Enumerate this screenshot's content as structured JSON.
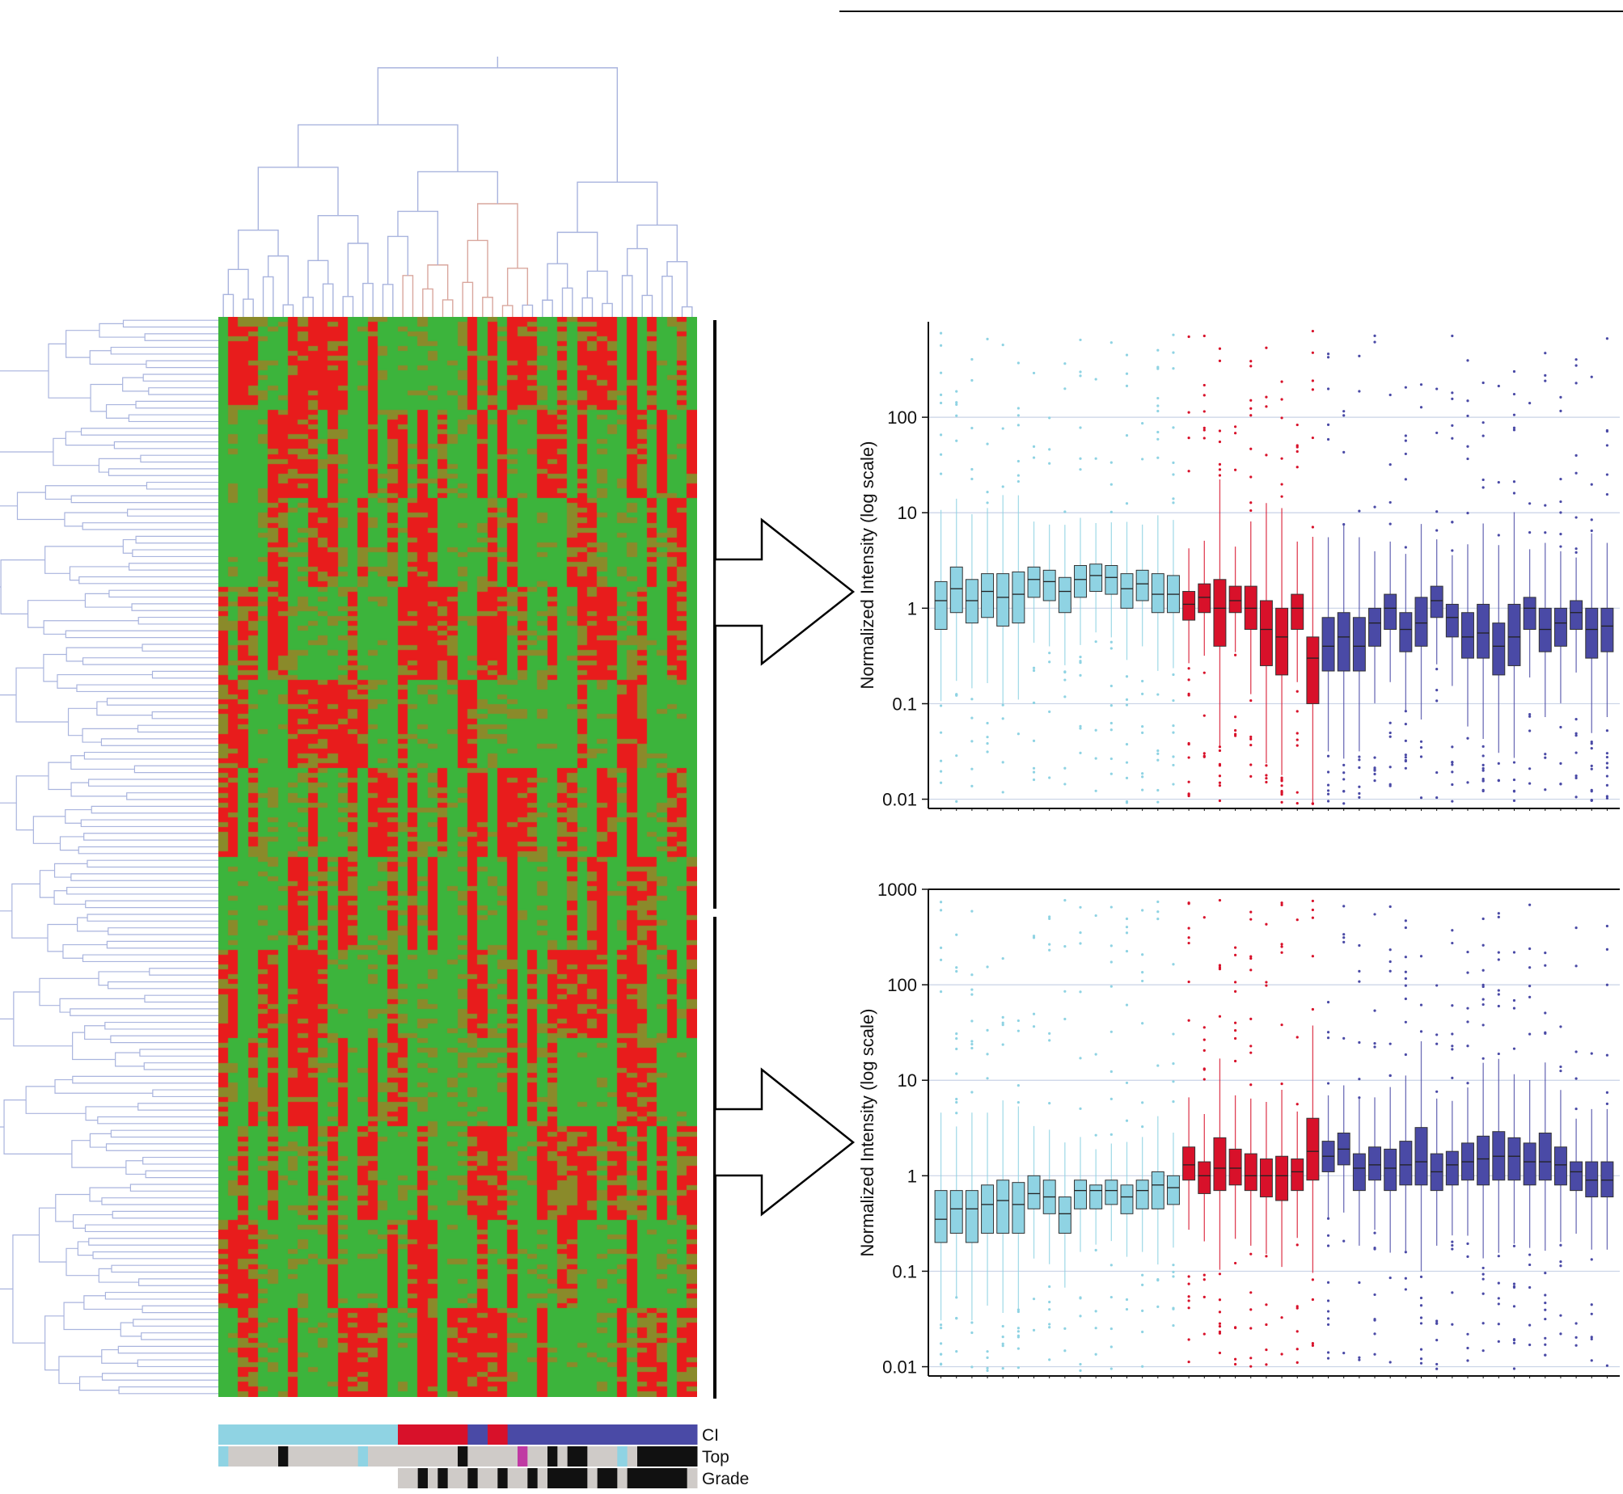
{
  "colors": {
    "cluster_light": "#8fd3e3",
    "cluster_red": "#d8112a",
    "cluster_dark": "#4a4aa6",
    "heat_high": "#e81c1c",
    "heat_low": "#3cb43c",
    "heat_mid": "#8a8a2a",
    "dendrogram": "#a9b4de",
    "track_grey": "#cfcbc8",
    "track_black": "#111111",
    "track_magenta": "#c03aa3"
  },
  "heatmap": {
    "columns": 48,
    "annotation_tracks": [
      {
        "name": "CI",
        "segments": [
          {
            "from": 0,
            "to": 18,
            "color": "cluster_light"
          },
          {
            "from": 18,
            "to": 25,
            "color": "cluster_red"
          },
          {
            "from": 25,
            "to": 27,
            "color": "cluster_dark"
          },
          {
            "from": 27,
            "to": 29,
            "color": "cluster_red"
          },
          {
            "from": 29,
            "to": 48,
            "color": "cluster_dark"
          }
        ]
      },
      {
        "name": "Top",
        "segments": [
          {
            "from": 0,
            "to": 1,
            "color": "cluster_light"
          },
          {
            "from": 1,
            "to": 6,
            "color": "track_grey"
          },
          {
            "from": 6,
            "to": 7,
            "color": "track_black"
          },
          {
            "from": 7,
            "to": 14,
            "color": "track_grey"
          },
          {
            "from": 14,
            "to": 15,
            "color": "cluster_light"
          },
          {
            "from": 15,
            "to": 24,
            "color": "track_grey"
          },
          {
            "from": 24,
            "to": 25,
            "color": "track_black"
          },
          {
            "from": 25,
            "to": 30,
            "color": "track_grey"
          },
          {
            "from": 30,
            "to": 31,
            "color": "track_magenta"
          },
          {
            "from": 31,
            "to": 33,
            "color": "track_grey"
          },
          {
            "from": 33,
            "to": 34,
            "color": "track_black"
          },
          {
            "from": 34,
            "to": 35,
            "color": "track_grey"
          },
          {
            "from": 35,
            "to": 37,
            "color": "track_black"
          },
          {
            "from": 37,
            "to": 40,
            "color": "track_grey"
          },
          {
            "from": 40,
            "to": 41,
            "color": "cluster_light"
          },
          {
            "from": 41,
            "to": 42,
            "color": "track_grey"
          },
          {
            "from": 42,
            "to": 48,
            "color": "track_black"
          }
        ]
      },
      {
        "name": "Grade",
        "segments": [
          {
            "from": 18,
            "to": 20,
            "color": "track_grey"
          },
          {
            "from": 20,
            "to": 21,
            "color": "track_black"
          },
          {
            "from": 21,
            "to": 22,
            "color": "track_grey"
          },
          {
            "from": 22,
            "to": 23,
            "color": "track_black"
          },
          {
            "from": 23,
            "to": 25,
            "color": "track_grey"
          },
          {
            "from": 25,
            "to": 26,
            "color": "track_black"
          },
          {
            "from": 26,
            "to": 28,
            "color": "track_grey"
          },
          {
            "from": 28,
            "to": 29,
            "color": "track_black"
          },
          {
            "from": 29,
            "to": 31,
            "color": "track_grey"
          },
          {
            "from": 31,
            "to": 32,
            "color": "track_black"
          },
          {
            "from": 32,
            "to": 33,
            "color": "track_grey"
          },
          {
            "from": 33,
            "to": 37,
            "color": "track_black"
          },
          {
            "from": 37,
            "to": 38,
            "color": "track_grey"
          },
          {
            "from": 38,
            "to": 40,
            "color": "track_black"
          },
          {
            "from": 40,
            "to": 41,
            "color": "track_grey"
          },
          {
            "from": 41,
            "to": 47,
            "color": "track_black"
          },
          {
            "from": 47,
            "to": 48,
            "color": "track_grey"
          }
        ]
      }
    ]
  },
  "chart_data": [
    {
      "type": "box",
      "ylabel": "Normalized Intensity (log scale)",
      "yscale": "log",
      "ylim": [
        0.008,
        1000
      ],
      "yticks": [
        "100",
        "10",
        "1",
        "0.1",
        "0.01"
      ],
      "grid": "horizontal",
      "boxes": [
        {
          "group": "cluster_light",
          "q1": 0.6,
          "median": 1.2,
          "q3": 1.9
        },
        {
          "group": "cluster_light",
          "q1": 0.9,
          "median": 1.6,
          "q3": 2.7
        },
        {
          "group": "cluster_light",
          "q1": 0.7,
          "median": 1.2,
          "q3": 2.0
        },
        {
          "group": "cluster_light",
          "q1": 0.8,
          "median": 1.5,
          "q3": 2.3
        },
        {
          "group": "cluster_light",
          "q1": 0.65,
          "median": 1.3,
          "q3": 2.3
        },
        {
          "group": "cluster_light",
          "q1": 0.7,
          "median": 1.4,
          "q3": 2.4
        },
        {
          "group": "cluster_light",
          "q1": 1.3,
          "median": 2.0,
          "q3": 2.7
        },
        {
          "group": "cluster_light",
          "q1": 1.2,
          "median": 1.9,
          "q3": 2.5
        },
        {
          "group": "cluster_light",
          "q1": 0.9,
          "median": 1.5,
          "q3": 2.1
        },
        {
          "group": "cluster_light",
          "q1": 1.3,
          "median": 2.0,
          "q3": 2.8
        },
        {
          "group": "cluster_light",
          "q1": 1.5,
          "median": 2.2,
          "q3": 2.9
        },
        {
          "group": "cluster_light",
          "q1": 1.4,
          "median": 2.1,
          "q3": 2.8
        },
        {
          "group": "cluster_light",
          "q1": 1.0,
          "median": 1.6,
          "q3": 2.3
        },
        {
          "group": "cluster_light",
          "q1": 1.2,
          "median": 1.8,
          "q3": 2.5
        },
        {
          "group": "cluster_light",
          "q1": 0.9,
          "median": 1.4,
          "q3": 2.3
        },
        {
          "group": "cluster_light",
          "q1": 0.9,
          "median": 1.4,
          "q3": 2.2
        },
        {
          "group": "cluster_red",
          "q1": 0.75,
          "median": 1.1,
          "q3": 1.5
        },
        {
          "group": "cluster_red",
          "q1": 0.9,
          "median": 1.3,
          "q3": 1.8
        },
        {
          "group": "cluster_red",
          "q1": 0.4,
          "median": 1.0,
          "q3": 2.0
        },
        {
          "group": "cluster_red",
          "q1": 0.9,
          "median": 1.2,
          "q3": 1.7
        },
        {
          "group": "cluster_red",
          "q1": 0.6,
          "median": 1.0,
          "q3": 1.7
        },
        {
          "group": "cluster_red",
          "q1": 0.25,
          "median": 0.6,
          "q3": 1.2
        },
        {
          "group": "cluster_red",
          "q1": 0.2,
          "median": 0.5,
          "q3": 1.0
        },
        {
          "group": "cluster_red",
          "q1": 0.6,
          "median": 1.0,
          "q3": 1.4
        },
        {
          "group": "cluster_red",
          "q1": 0.1,
          "median": 0.3,
          "q3": 0.5
        },
        {
          "group": "cluster_dark",
          "q1": 0.22,
          "median": 0.4,
          "q3": 0.8
        },
        {
          "group": "cluster_dark",
          "q1": 0.22,
          "median": 0.5,
          "q3": 0.9
        },
        {
          "group": "cluster_dark",
          "q1": 0.22,
          "median": 0.4,
          "q3": 0.8
        },
        {
          "group": "cluster_dark",
          "q1": 0.4,
          "median": 0.7,
          "q3": 1.0
        },
        {
          "group": "cluster_dark",
          "q1": 0.6,
          "median": 1.0,
          "q3": 1.4
        },
        {
          "group": "cluster_dark",
          "q1": 0.35,
          "median": 0.6,
          "q3": 0.9
        },
        {
          "group": "cluster_dark",
          "q1": 0.4,
          "median": 0.7,
          "q3": 1.3
        },
        {
          "group": "cluster_dark",
          "q1": 0.8,
          "median": 1.2,
          "q3": 1.7
        },
        {
          "group": "cluster_dark",
          "q1": 0.5,
          "median": 0.8,
          "q3": 1.1
        },
        {
          "group": "cluster_dark",
          "q1": 0.3,
          "median": 0.5,
          "q3": 0.9
        },
        {
          "group": "cluster_dark",
          "q1": 0.3,
          "median": 0.55,
          "q3": 1.1
        },
        {
          "group": "cluster_dark",
          "q1": 0.2,
          "median": 0.4,
          "q3": 0.7
        },
        {
          "group": "cluster_dark",
          "q1": 0.25,
          "median": 0.5,
          "q3": 1.1
        },
        {
          "group": "cluster_dark",
          "q1": 0.6,
          "median": 1.0,
          "q3": 1.3
        },
        {
          "group": "cluster_dark",
          "q1": 0.35,
          "median": 0.6,
          "q3": 1.0
        },
        {
          "group": "cluster_dark",
          "q1": 0.4,
          "median": 0.7,
          "q3": 1.0
        },
        {
          "group": "cluster_dark",
          "q1": 0.6,
          "median": 0.9,
          "q3": 1.2
        },
        {
          "group": "cluster_dark",
          "q1": 0.3,
          "median": 0.6,
          "q3": 1.0
        },
        {
          "group": "cluster_dark",
          "q1": 0.35,
          "median": 0.65,
          "q3": 1.0
        }
      ]
    },
    {
      "type": "box",
      "ylabel": "Normalized Intensity (log scale)",
      "yscale": "log",
      "ylim": [
        0.008,
        1000
      ],
      "yticks": [
        "1000",
        "100",
        "10",
        "1",
        "0.1",
        "0.01"
      ],
      "grid": "horizontal",
      "boxes": [
        {
          "group": "cluster_light",
          "q1": 0.2,
          "median": 0.35,
          "q3": 0.7
        },
        {
          "group": "cluster_light",
          "q1": 0.25,
          "median": 0.45,
          "q3": 0.7
        },
        {
          "group": "cluster_light",
          "q1": 0.2,
          "median": 0.45,
          "q3": 0.7
        },
        {
          "group": "cluster_light",
          "q1": 0.25,
          "median": 0.5,
          "q3": 0.8
        },
        {
          "group": "cluster_light",
          "q1": 0.25,
          "median": 0.55,
          "q3": 0.9
        },
        {
          "group": "cluster_light",
          "q1": 0.25,
          "median": 0.5,
          "q3": 0.85
        },
        {
          "group": "cluster_light",
          "q1": 0.45,
          "median": 0.65,
          "q3": 1.0
        },
        {
          "group": "cluster_light",
          "q1": 0.4,
          "median": 0.6,
          "q3": 0.9
        },
        {
          "group": "cluster_light",
          "q1": 0.25,
          "median": 0.4,
          "q3": 0.6
        },
        {
          "group": "cluster_light",
          "q1": 0.45,
          "median": 0.7,
          "q3": 0.9
        },
        {
          "group": "cluster_light",
          "q1": 0.45,
          "median": 0.7,
          "q3": 0.8
        },
        {
          "group": "cluster_light",
          "q1": 0.5,
          "median": 0.7,
          "q3": 0.9
        },
        {
          "group": "cluster_light",
          "q1": 0.4,
          "median": 0.6,
          "q3": 0.8
        },
        {
          "group": "cluster_light",
          "q1": 0.45,
          "median": 0.7,
          "q3": 0.9
        },
        {
          "group": "cluster_light",
          "q1": 0.45,
          "median": 0.8,
          "q3": 1.1
        },
        {
          "group": "cluster_light",
          "q1": 0.5,
          "median": 0.75,
          "q3": 1.0
        },
        {
          "group": "cluster_red",
          "q1": 0.9,
          "median": 1.3,
          "q3": 2.0
        },
        {
          "group": "cluster_red",
          "q1": 0.65,
          "median": 1.0,
          "q3": 1.4
        },
        {
          "group": "cluster_red",
          "q1": 0.7,
          "median": 1.2,
          "q3": 2.5
        },
        {
          "group": "cluster_red",
          "q1": 0.8,
          "median": 1.2,
          "q3": 1.9
        },
        {
          "group": "cluster_red",
          "q1": 0.7,
          "median": 1.0,
          "q3": 1.7
        },
        {
          "group": "cluster_red",
          "q1": 0.6,
          "median": 1.0,
          "q3": 1.5
        },
        {
          "group": "cluster_red",
          "q1": 0.55,
          "median": 1.0,
          "q3": 1.6
        },
        {
          "group": "cluster_red",
          "q1": 0.7,
          "median": 1.1,
          "q3": 1.5
        },
        {
          "group": "cluster_red",
          "q1": 0.9,
          "median": 1.8,
          "q3": 4.0
        },
        {
          "group": "cluster_dark",
          "q1": 1.1,
          "median": 1.6,
          "q3": 2.3
        },
        {
          "group": "cluster_dark",
          "q1": 1.3,
          "median": 1.9,
          "q3": 2.8
        },
        {
          "group": "cluster_dark",
          "q1": 0.7,
          "median": 1.2,
          "q3": 1.7
        },
        {
          "group": "cluster_dark",
          "q1": 0.9,
          "median": 1.3,
          "q3": 2.0
        },
        {
          "group": "cluster_dark",
          "q1": 0.7,
          "median": 1.2,
          "q3": 1.9
        },
        {
          "group": "cluster_dark",
          "q1": 0.8,
          "median": 1.3,
          "q3": 2.3
        },
        {
          "group": "cluster_dark",
          "q1": 0.8,
          "median": 1.4,
          "q3": 3.2
        },
        {
          "group": "cluster_dark",
          "q1": 0.7,
          "median": 1.1,
          "q3": 1.7
        },
        {
          "group": "cluster_dark",
          "q1": 0.8,
          "median": 1.3,
          "q3": 1.8
        },
        {
          "group": "cluster_dark",
          "q1": 0.9,
          "median": 1.4,
          "q3": 2.2
        },
        {
          "group": "cluster_dark",
          "q1": 0.8,
          "median": 1.5,
          "q3": 2.6
        },
        {
          "group": "cluster_dark",
          "q1": 0.9,
          "median": 1.6,
          "q3": 2.9
        },
        {
          "group": "cluster_dark",
          "q1": 0.9,
          "median": 1.6,
          "q3": 2.5
        },
        {
          "group": "cluster_dark",
          "q1": 0.8,
          "median": 1.4,
          "q3": 2.2
        },
        {
          "group": "cluster_dark",
          "q1": 0.9,
          "median": 1.4,
          "q3": 2.8
        },
        {
          "group": "cluster_dark",
          "q1": 0.8,
          "median": 1.3,
          "q3": 2.0
        },
        {
          "group": "cluster_dark",
          "q1": 0.7,
          "median": 1.1,
          "q3": 1.4
        },
        {
          "group": "cluster_dark",
          "q1": 0.6,
          "median": 0.9,
          "q3": 1.4
        },
        {
          "group": "cluster_dark",
          "q1": 0.6,
          "median": 0.9,
          "q3": 1.4
        }
      ]
    }
  ]
}
